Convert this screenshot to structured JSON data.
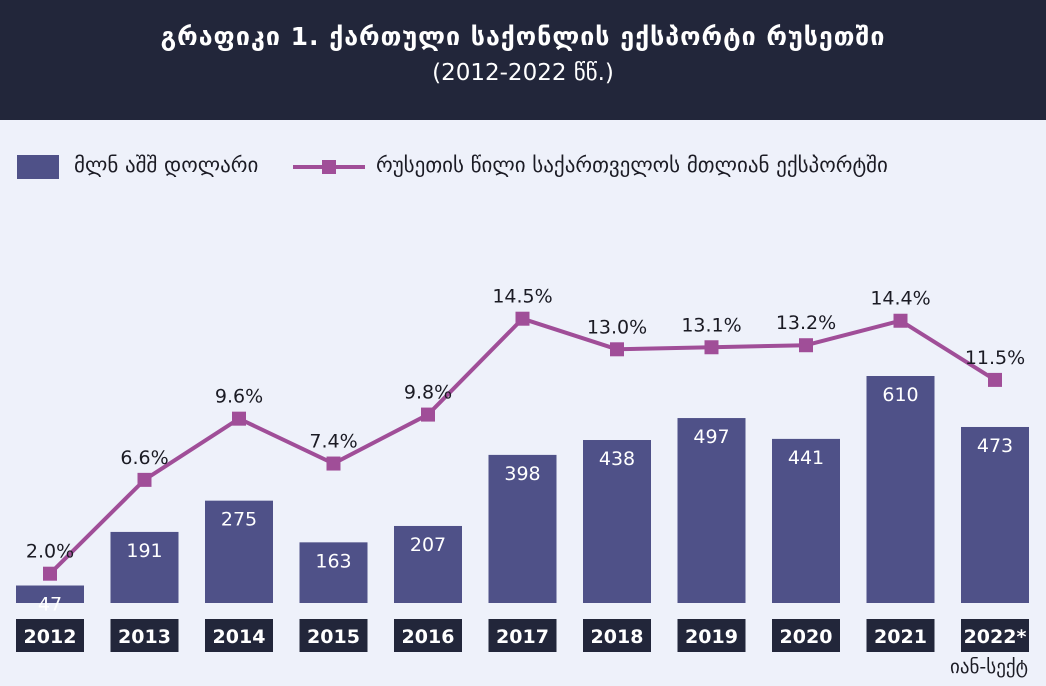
{
  "chart_data": {
    "type": "bar",
    "title": "გრაფიკი 1. ქართული საქონლის ექსპორტი რუსეთში",
    "subtitle": "(2012-2022 წწ.)",
    "categories": [
      "2012",
      "2013",
      "2014",
      "2015",
      "2016",
      "2017",
      "2018",
      "2019",
      "2020",
      "2021",
      "2022*"
    ],
    "series": [
      {
        "name": "მლნ აშშ დოლარი",
        "type": "bar",
        "values": [
          47,
          191,
          275,
          163,
          207,
          398,
          438,
          497,
          441,
          610,
          473
        ],
        "labels": [
          "47",
          "191",
          "275",
          "163",
          "207",
          "398",
          "438",
          "497",
          "441",
          "610",
          "473"
        ]
      },
      {
        "name": "რუსეთის წილი საქართველოს მთლიან ექსპორტში",
        "type": "line",
        "values": [
          2.0,
          6.6,
          9.6,
          7.4,
          9.8,
          14.5,
          13.0,
          13.1,
          13.2,
          14.4,
          11.5
        ],
        "labels": [
          "2.0%",
          "6.6%",
          "9.6%",
          "7.4%",
          "9.8%",
          "14.5%",
          "13.0%",
          "13.1%",
          "13.2%",
          "14.4%",
          "11.5%"
        ]
      }
    ],
    "footnote": "იან-სექტ",
    "legend": "top-left",
    "grid": false,
    "colors": {
      "bar": "#4f5188",
      "line": "#a04e98",
      "category_label_bg": "#22263a",
      "header_bg": "#22263a",
      "background": "#eef1fa"
    }
  }
}
